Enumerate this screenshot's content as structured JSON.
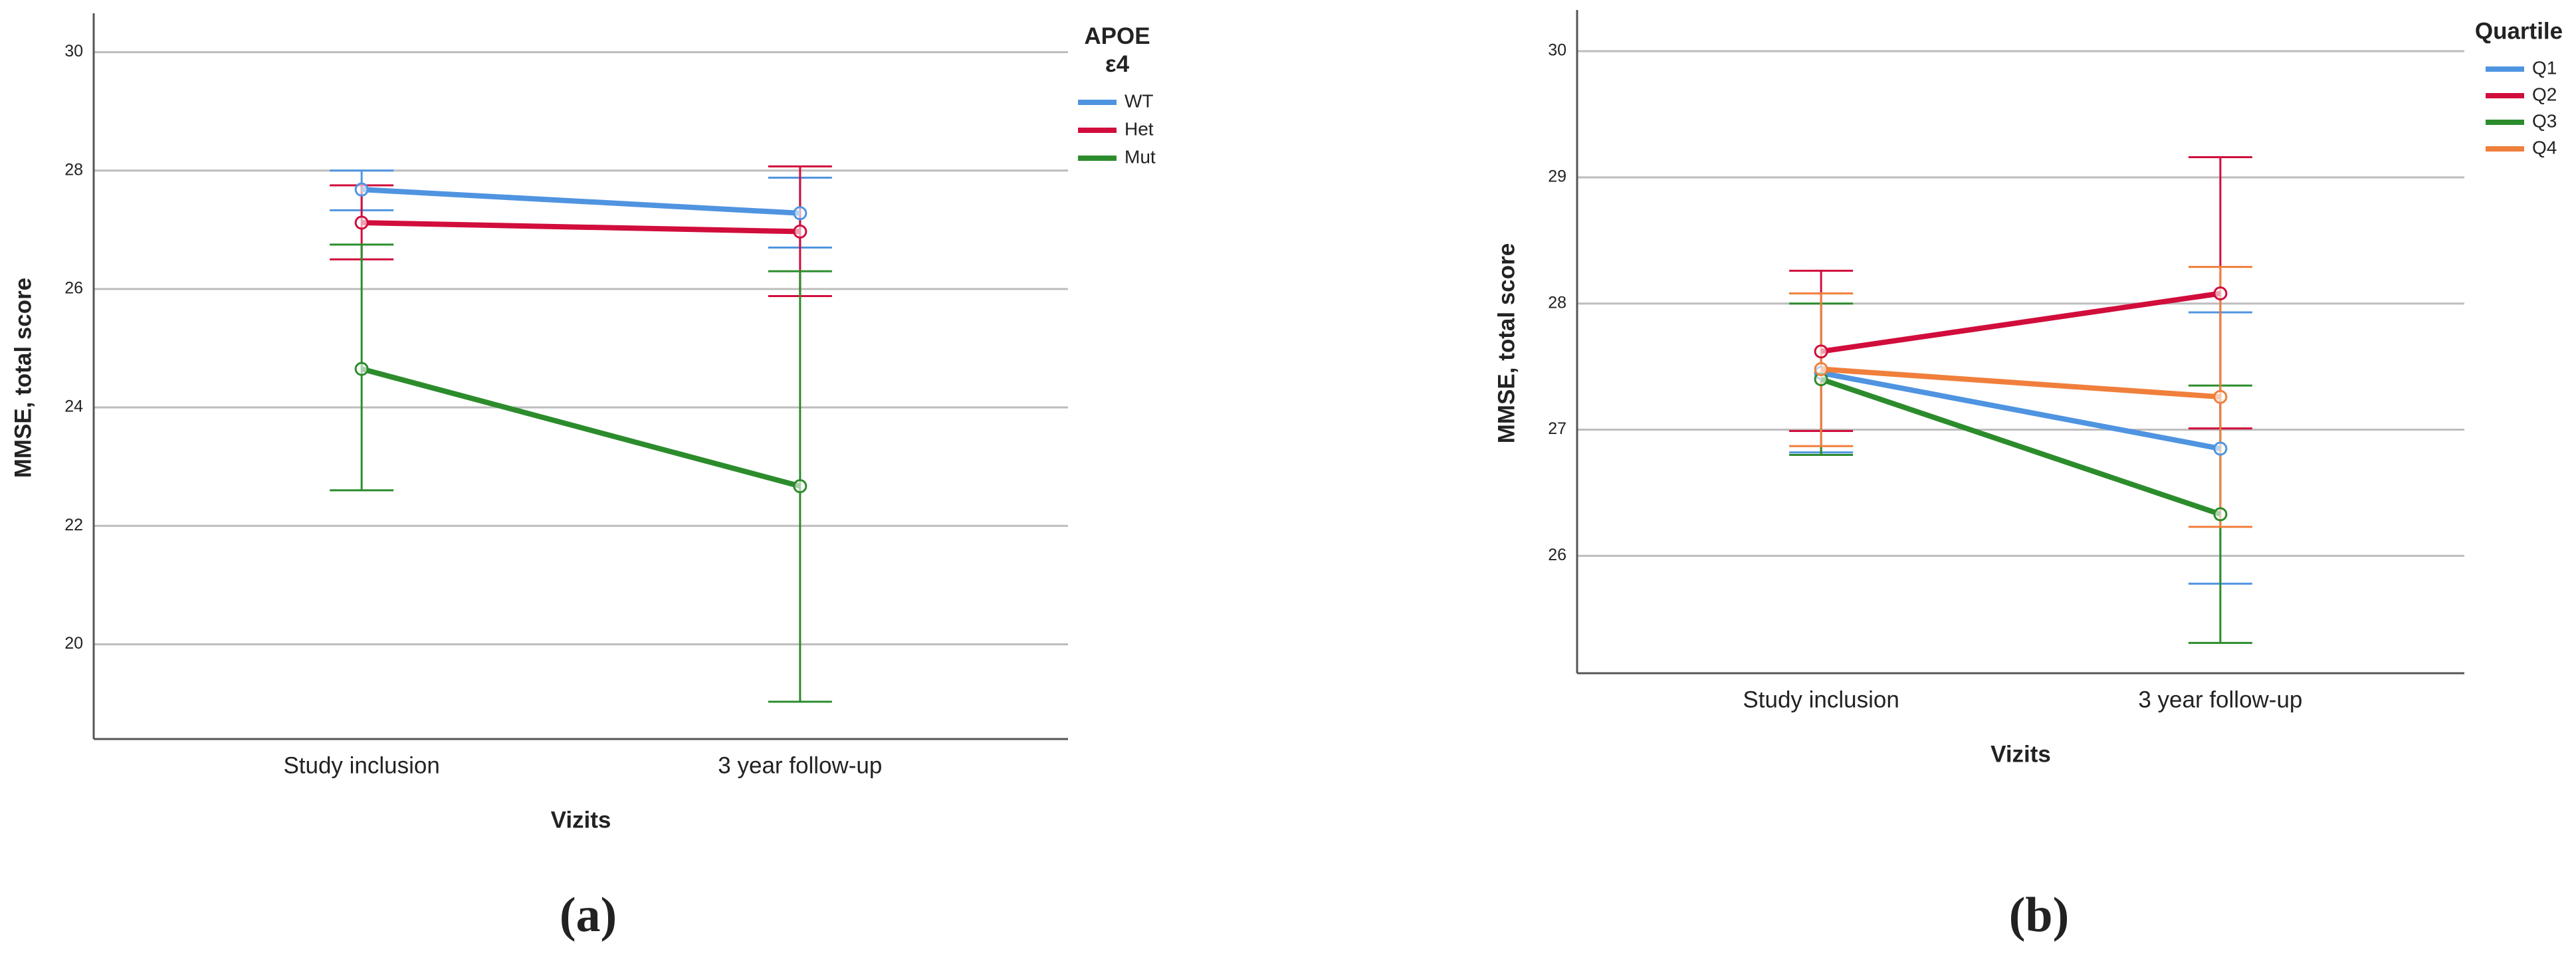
{
  "charts": [
    {
      "chart_data": {
        "type": "line",
        "caption": "(a)",
        "xlabel": "Vizits",
        "ylabel": "MMSE, total score",
        "legend_title": "APOE ε4",
        "legend_position": "right",
        "grid": true,
        "categories": [
          "Study inclusion",
          "3 year follow-up"
        ],
        "ylim": [
          18.4,
          30.6
        ],
        "yticks": [
          20,
          22,
          24,
          26,
          28,
          30
        ],
        "series": [
          {
            "name": "WT",
            "color": "#4f94e0",
            "values": [
              27.68,
              27.28
            ],
            "ci_low": [
              27.33,
              26.7
            ],
            "ci_high": [
              28.0,
              27.88
            ]
          },
          {
            "name": "Het",
            "color": "#d10d3c",
            "values": [
              27.12,
              26.97
            ],
            "ci_low": [
              26.5,
              25.88
            ],
            "ci_high": [
              27.75,
              28.07
            ]
          },
          {
            "name": "Mut",
            "color": "#2c8c2c",
            "values": [
              24.65,
              22.67
            ],
            "ci_low": [
              22.6,
              19.03
            ],
            "ci_high": [
              26.75,
              26.3
            ]
          }
        ]
      }
    },
    {
      "chart_data": {
        "type": "line",
        "caption": "(b)",
        "xlabel": "Vizits",
        "ylabel": "MMSE, total score",
        "legend_title": "Quartile",
        "legend_position": "right",
        "grid": true,
        "categories": [
          "Study inclusion",
          "3 year follow-up"
        ],
        "ylim": [
          25.07,
          30.3
        ],
        "yticks": [
          26,
          27,
          28,
          29,
          30
        ],
        "series": [
          {
            "name": "Q1",
            "color": "#4f94e0",
            "values": [
              27.45,
              26.85
            ],
            "ci_low": [
              26.82,
              25.78
            ],
            "ci_high": [
              28.08,
              27.93
            ]
          },
          {
            "name": "Q2",
            "color": "#d10d3c",
            "values": [
              27.62,
              28.08
            ],
            "ci_low": [
              26.99,
              27.01
            ],
            "ci_high": [
              28.26,
              29.16
            ]
          },
          {
            "name": "Q3",
            "color": "#2c8c2c",
            "values": [
              27.4,
              26.33
            ],
            "ci_low": [
              26.8,
              25.31
            ],
            "ci_high": [
              28.0,
              27.35
            ]
          },
          {
            "name": "Q4",
            "color": "#f07f3c",
            "values": [
              27.48,
              27.26
            ],
            "ci_low": [
              26.87,
              26.23
            ],
            "ci_high": [
              28.08,
              28.29
            ]
          }
        ]
      }
    }
  ]
}
